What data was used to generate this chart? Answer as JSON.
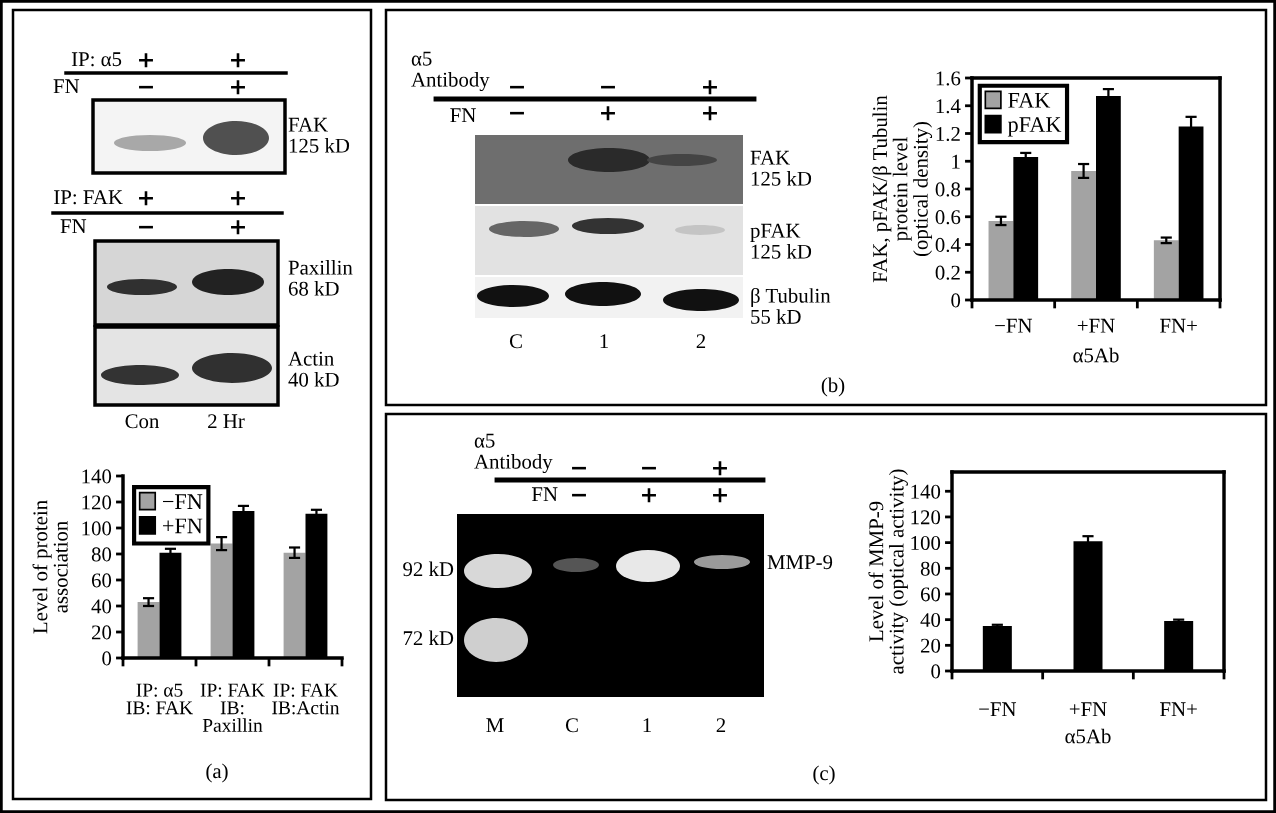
{
  "chart_data": [
    {
      "type": "other",
      "annotations": [
        "IP: α5",
        "+",
        "+",
        "FN",
        "−",
        "+",
        "FAK\n125 kD",
        "IP: FAK",
        "+",
        "+",
        "FN",
        "−",
        "+",
        "Paxillin\n68 kD",
        "Actin\n40 kD",
        "Con",
        "2 Hr"
      ]
    },
    {
      "type": "bar",
      "categories": [
        "IP: α5\nIB: FAK",
        "IP: FAK\nIB:\nPaxillin",
        "IP: FAK\nIB:Actin"
      ],
      "ylabel": "Level of protein\nassociation",
      "ylim": [
        0,
        140
      ],
      "yticks": [
        0,
        20,
        40,
        60,
        80,
        100,
        120,
        140
      ],
      "legend": "top left",
      "annotations": [
        "(a)"
      ],
      "series": [
        {
          "name": "−FN",
          "color": "#a3a3a3",
          "values": [
            43,
            88,
            81
          ],
          "errors": [
            3,
            5,
            4
          ]
        },
        {
          "name": "+FN",
          "color": "#000000",
          "values": [
            81,
            113,
            111
          ],
          "errors": [
            3,
            4,
            3
          ]
        }
      ]
    },
    {
      "type": "other",
      "annotations": [
        "α5\nAntibody",
        "−",
        "−",
        "+",
        "FN",
        "−",
        "+",
        "+",
        "FAK\n125 kD",
        "pFAK\n125 kD",
        "β Tubulin\n55 kD",
        "C",
        "1",
        "2"
      ]
    },
    {
      "type": "bar",
      "categories": [
        "−FN",
        "+FN",
        "FN+"
      ],
      "xlabel": "α5Ab",
      "ylabel": "FAK, pFAK/β Tubulin\nprotein level\n(optical density)",
      "ylim": [
        0,
        1.6
      ],
      "yticks": [
        0,
        0.2,
        0.4,
        0.6,
        0.8,
        1,
        1.2,
        1.4,
        1.6
      ],
      "legend": "top left",
      "annotations": [
        "(b)"
      ],
      "series": [
        {
          "name": "FAK",
          "color": "#a3a3a3",
          "values": [
            0.57,
            0.93,
            0.43
          ],
          "errors": [
            0.03,
            0.05,
            0.02
          ]
        },
        {
          "name": "pFAK",
          "color": "#000000",
          "values": [
            1.03,
            1.47,
            1.25
          ],
          "errors": [
            0.03,
            0.05,
            0.07
          ]
        }
      ]
    },
    {
      "type": "other",
      "annotations": [
        "α5\nAntibody",
        "−",
        "−",
        "+",
        "FN",
        "−",
        "+",
        "+",
        "92 kD",
        "72 kD",
        "MMP-9",
        "M",
        "C",
        "1",
        "2"
      ]
    },
    {
      "type": "bar",
      "categories": [
        "−FN",
        "+FN",
        "FN+"
      ],
      "xlabel": "α5Ab",
      "ylabel": "Level of MMP-9\nactivity (optical activity)",
      "ylim": [
        0,
        155
      ],
      "yticks": [
        0,
        20,
        40,
        60,
        80,
        100,
        120,
        140
      ],
      "annotations": [
        "(c)"
      ],
      "series": [
        {
          "color": "#000000",
          "values": [
            35,
            101,
            39
          ],
          "errors": [
            1,
            4,
            1
          ]
        }
      ]
    }
  ]
}
